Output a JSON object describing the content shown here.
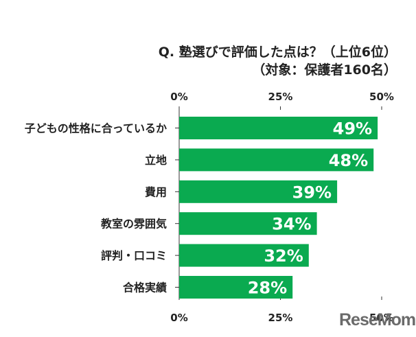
{
  "title_line1": "Q. 塾選びで評価した点は？（上位6位）",
  "title_line2": "（対象：保護者160名）",
  "logo": "ReseMom",
  "colors": {
    "bar": "#0aaa50",
    "grid": "#333333",
    "text": "#222222",
    "label": "#ffffff"
  },
  "chart_data": {
    "type": "bar",
    "orientation": "horizontal",
    "categories": [
      "子どもの性格に合っているか",
      "立地",
      "費用",
      "教室の雰囲気",
      "評判・口コミ",
      "合格実績"
    ],
    "values": [
      49,
      48,
      39,
      34,
      32,
      28
    ],
    "data_labels": [
      "49%",
      "48%",
      "39%",
      "34%",
      "32%",
      "28%"
    ],
    "xlim": [
      0,
      50
    ],
    "ticks": [
      "0%",
      "25%",
      "50%"
    ],
    "tick_values": [
      0,
      25,
      50
    ],
    "grid": false,
    "legend": "none"
  }
}
